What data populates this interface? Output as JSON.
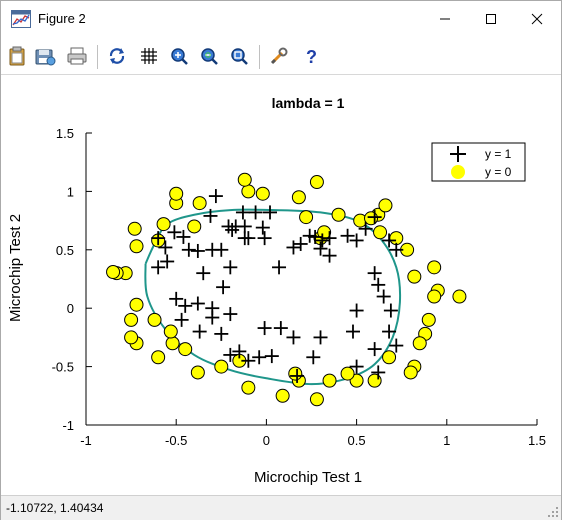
{
  "window": {
    "title": "Figure 2",
    "minimize_icon": "minimize-icon",
    "maximize_icon": "maximize-icon",
    "close_icon": "close-icon"
  },
  "toolbar": {
    "buttons": [
      {
        "name": "clipboard-icon"
      },
      {
        "name": "save-icon"
      },
      {
        "name": "print-icon"
      },
      {
        "name": "rotate-icon"
      },
      {
        "name": "grid-icon"
      },
      {
        "name": "zoom-in-icon"
      },
      {
        "name": "zoom-out-icon"
      },
      {
        "name": "zoom-reset-icon"
      },
      {
        "name": "tools-icon"
      },
      {
        "name": "help-icon"
      }
    ]
  },
  "status": {
    "coordinates": "-1.10722,  1.40434"
  },
  "colors": {
    "positive_marker": "#000000",
    "negative_fill": "#ffff00",
    "boundary": "#1f968b"
  },
  "chart_data": {
    "type": "scatter",
    "title": "lambda = 1",
    "xlabel": "Microchip Test 1",
    "ylabel": "Microchip Test 2",
    "xlim": [
      -1,
      1.5
    ],
    "ylim": [
      -1,
      1.5
    ],
    "xticks": [
      "-1",
      "-0.5",
      "0",
      "0.5",
      "1",
      "1.5"
    ],
    "yticks": [
      "-1",
      "-0.5",
      "0",
      "0.5",
      "1",
      "1.5"
    ],
    "xtick_values": [
      -1,
      -0.5,
      0,
      0.5,
      1,
      1.5
    ],
    "ytick_values": [
      -1,
      -0.5,
      0,
      0.5,
      1,
      1.5
    ],
    "legend": {
      "placement": "top-right",
      "entries": [
        {
          "label": "y = 1",
          "marker": "plus"
        },
        {
          "label": "y = 0",
          "marker": "circle"
        }
      ]
    },
    "series": [
      {
        "name": "y = 1",
        "marker": "plus",
        "points": [
          [
            -0.28,
            0.96
          ],
          [
            -0.31,
            0.79
          ],
          [
            -0.13,
            0.82
          ],
          [
            -0.06,
            0.82
          ],
          [
            0.02,
            0.82
          ],
          [
            -0.21,
            0.7
          ],
          [
            -0.17,
            0.7
          ],
          [
            -0.12,
            0.7
          ],
          [
            -0.1,
            0.6
          ],
          [
            -0.19,
            0.67
          ],
          [
            -0.02,
            0.69
          ],
          [
            -0.01,
            0.6
          ],
          [
            -0.51,
            0.65
          ],
          [
            -0.46,
            0.61
          ],
          [
            -0.56,
            0.52
          ],
          [
            -0.6,
            0.6
          ],
          [
            -0.43,
            0.5
          ],
          [
            -0.38,
            0.49
          ],
          [
            -0.3,
            0.5
          ],
          [
            -0.25,
            0.5
          ],
          [
            -0.6,
            0.35
          ],
          [
            -0.55,
            0.4
          ],
          [
            -0.2,
            0.35
          ],
          [
            -0.35,
            0.3
          ],
          [
            -0.24,
            0.18
          ],
          [
            -0.12,
            0.6
          ],
          [
            0.07,
            0.35
          ],
          [
            -0.5,
            0.08
          ],
          [
            -0.45,
            0.02
          ],
          [
            -0.38,
            0.04
          ],
          [
            -0.3,
            0.0
          ],
          [
            -0.37,
            -0.2
          ],
          [
            -0.47,
            -0.1
          ],
          [
            -0.3,
            -0.08
          ],
          [
            -0.2,
            -0.05
          ],
          [
            -0.25,
            -0.22
          ],
          [
            -0.2,
            -0.4
          ],
          [
            -0.15,
            -0.37
          ],
          [
            -0.1,
            -0.45
          ],
          [
            -0.01,
            -0.17
          ],
          [
            -0.04,
            -0.42
          ],
          [
            0.08,
            -0.17
          ],
          [
            0.03,
            -0.41
          ],
          [
            0.15,
            -0.25
          ],
          [
            0.17,
            -0.58
          ],
          [
            0.26,
            -0.42
          ],
          [
            0.3,
            -0.25
          ],
          [
            0.24,
            0.62
          ],
          [
            0.31,
            0.58
          ],
          [
            0.3,
            0.51
          ],
          [
            0.35,
            0.6
          ],
          [
            0.45,
            0.62
          ],
          [
            0.5,
            0.58
          ],
          [
            0.55,
            0.68
          ],
          [
            0.6,
            0.78
          ],
          [
            0.68,
            0.58
          ],
          [
            0.72,
            0.5
          ],
          [
            0.6,
            0.3
          ],
          [
            0.62,
            0.2
          ],
          [
            0.65,
            0.1
          ],
          [
            0.5,
            -0.02
          ],
          [
            0.48,
            -0.2
          ],
          [
            0.6,
            -0.35
          ],
          [
            0.68,
            -0.2
          ],
          [
            0.69,
            -0.02
          ],
          [
            0.72,
            -0.32
          ],
          [
            0.5,
            -0.5
          ],
          [
            0.62,
            -0.55
          ],
          [
            0.27,
            0.61
          ],
          [
            0.15,
            0.52
          ],
          [
            0.19,
            0.55
          ],
          [
            0.35,
            0.45
          ]
        ]
      },
      {
        "name": "y = 0",
        "marker": "circle",
        "points": [
          [
            -0.5,
            0.9
          ],
          [
            -0.5,
            0.98
          ],
          [
            -0.37,
            0.9
          ],
          [
            -0.1,
            1.0
          ],
          [
            -0.12,
            1.1
          ],
          [
            -0.02,
            0.98
          ],
          [
            0.18,
            0.95
          ],
          [
            0.28,
            1.08
          ],
          [
            0.22,
            0.78
          ],
          [
            0.4,
            0.8
          ],
          [
            0.52,
            0.75
          ],
          [
            0.63,
            0.65
          ],
          [
            0.62,
            0.8
          ],
          [
            0.72,
            0.6
          ],
          [
            0.78,
            0.5
          ],
          [
            0.66,
            0.88
          ],
          [
            0.82,
            0.27
          ],
          [
            0.95,
            0.15
          ],
          [
            0.93,
            0.1
          ],
          [
            1.07,
            0.1
          ],
          [
            0.93,
            0.35
          ],
          [
            0.9,
            -0.1
          ],
          [
            0.88,
            -0.22
          ],
          [
            0.85,
            -0.3
          ],
          [
            0.82,
            -0.5
          ],
          [
            0.8,
            -0.55
          ],
          [
            0.68,
            -0.42
          ],
          [
            0.6,
            -0.62
          ],
          [
            0.5,
            -0.62
          ],
          [
            0.45,
            -0.56
          ],
          [
            0.35,
            -0.62
          ],
          [
            0.28,
            -0.78
          ],
          [
            0.18,
            -0.62
          ],
          [
            0.16,
            -0.56
          ],
          [
            0.09,
            -0.75
          ],
          [
            -0.1,
            -0.68
          ],
          [
            -0.15,
            -0.45
          ],
          [
            -0.25,
            -0.5
          ],
          [
            -0.38,
            -0.55
          ],
          [
            -0.45,
            -0.35
          ],
          [
            -0.52,
            -0.3
          ],
          [
            -0.62,
            -0.1
          ],
          [
            -0.6,
            -0.42
          ],
          [
            -0.72,
            -0.3
          ],
          [
            -0.75,
            -0.25
          ],
          [
            -0.75,
            -0.1
          ],
          [
            -0.72,
            0.03
          ],
          [
            -0.78,
            0.3
          ],
          [
            -0.83,
            0.3
          ],
          [
            -0.72,
            0.53
          ],
          [
            -0.73,
            0.68
          ],
          [
            -0.6,
            0.58
          ],
          [
            -0.57,
            0.72
          ],
          [
            -0.4,
            0.7
          ],
          [
            -0.85,
            0.31
          ],
          [
            0.3,
            0.6
          ],
          [
            0.58,
            0.77
          ],
          [
            0.32,
            0.65
          ],
          [
            -0.53,
            -0.2
          ]
        ]
      },
      {
        "name": "decision boundary",
        "type": "line",
        "points": [
          [
            -0.67,
            0.38
          ],
          [
            -0.62,
            0.55
          ],
          [
            -0.55,
            0.72
          ],
          [
            -0.4,
            0.8
          ],
          [
            -0.2,
            0.84
          ],
          [
            0.05,
            0.84
          ],
          [
            0.3,
            0.82
          ],
          [
            0.5,
            0.75
          ],
          [
            0.63,
            0.6
          ],
          [
            0.72,
            0.35
          ],
          [
            0.74,
            0.05
          ],
          [
            0.7,
            -0.25
          ],
          [
            0.6,
            -0.48
          ],
          [
            0.45,
            -0.6
          ],
          [
            0.25,
            -0.65
          ],
          [
            0.0,
            -0.6
          ],
          [
            -0.2,
            -0.53
          ],
          [
            -0.4,
            -0.4
          ],
          [
            -0.56,
            -0.18
          ],
          [
            -0.66,
            0.1
          ],
          [
            -0.67,
            0.38
          ]
        ]
      }
    ]
  }
}
